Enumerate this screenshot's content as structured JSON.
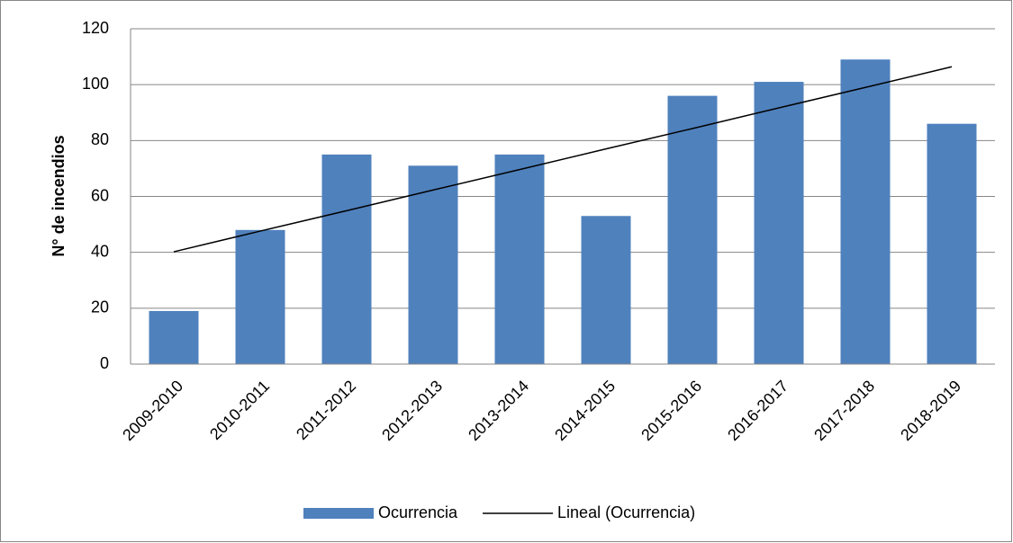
{
  "chart_data": {
    "type": "bar",
    "y_label": "N° de incendios",
    "categories": [
      "2009-2010",
      "2010-2011",
      "2011-2012",
      "2012-2013",
      "2013-2014",
      "2014-2015",
      "2015-2016",
      "2016-2017",
      "2017-2018",
      "2018-2019"
    ],
    "series": [
      {
        "name": "Ocurrencia",
        "type": "bar",
        "color": "#4f81bd",
        "values": [
          19,
          48,
          75,
          71,
          75,
          53,
          96,
          101,
          109,
          86
        ]
      },
      {
        "name": "Lineal (Ocurrencia)",
        "type": "line",
        "color": "#000000",
        "values": [
          40.2,
          47.6,
          54.9,
          62.3,
          69.6,
          77.0,
          84.3,
          91.7,
          99.0,
          106.4
        ]
      }
    ],
    "ylim": [
      0,
      120
    ],
    "yticks": [
      0,
      20,
      40,
      60,
      80,
      100,
      120
    ],
    "grid": true,
    "legend": "bottom"
  }
}
